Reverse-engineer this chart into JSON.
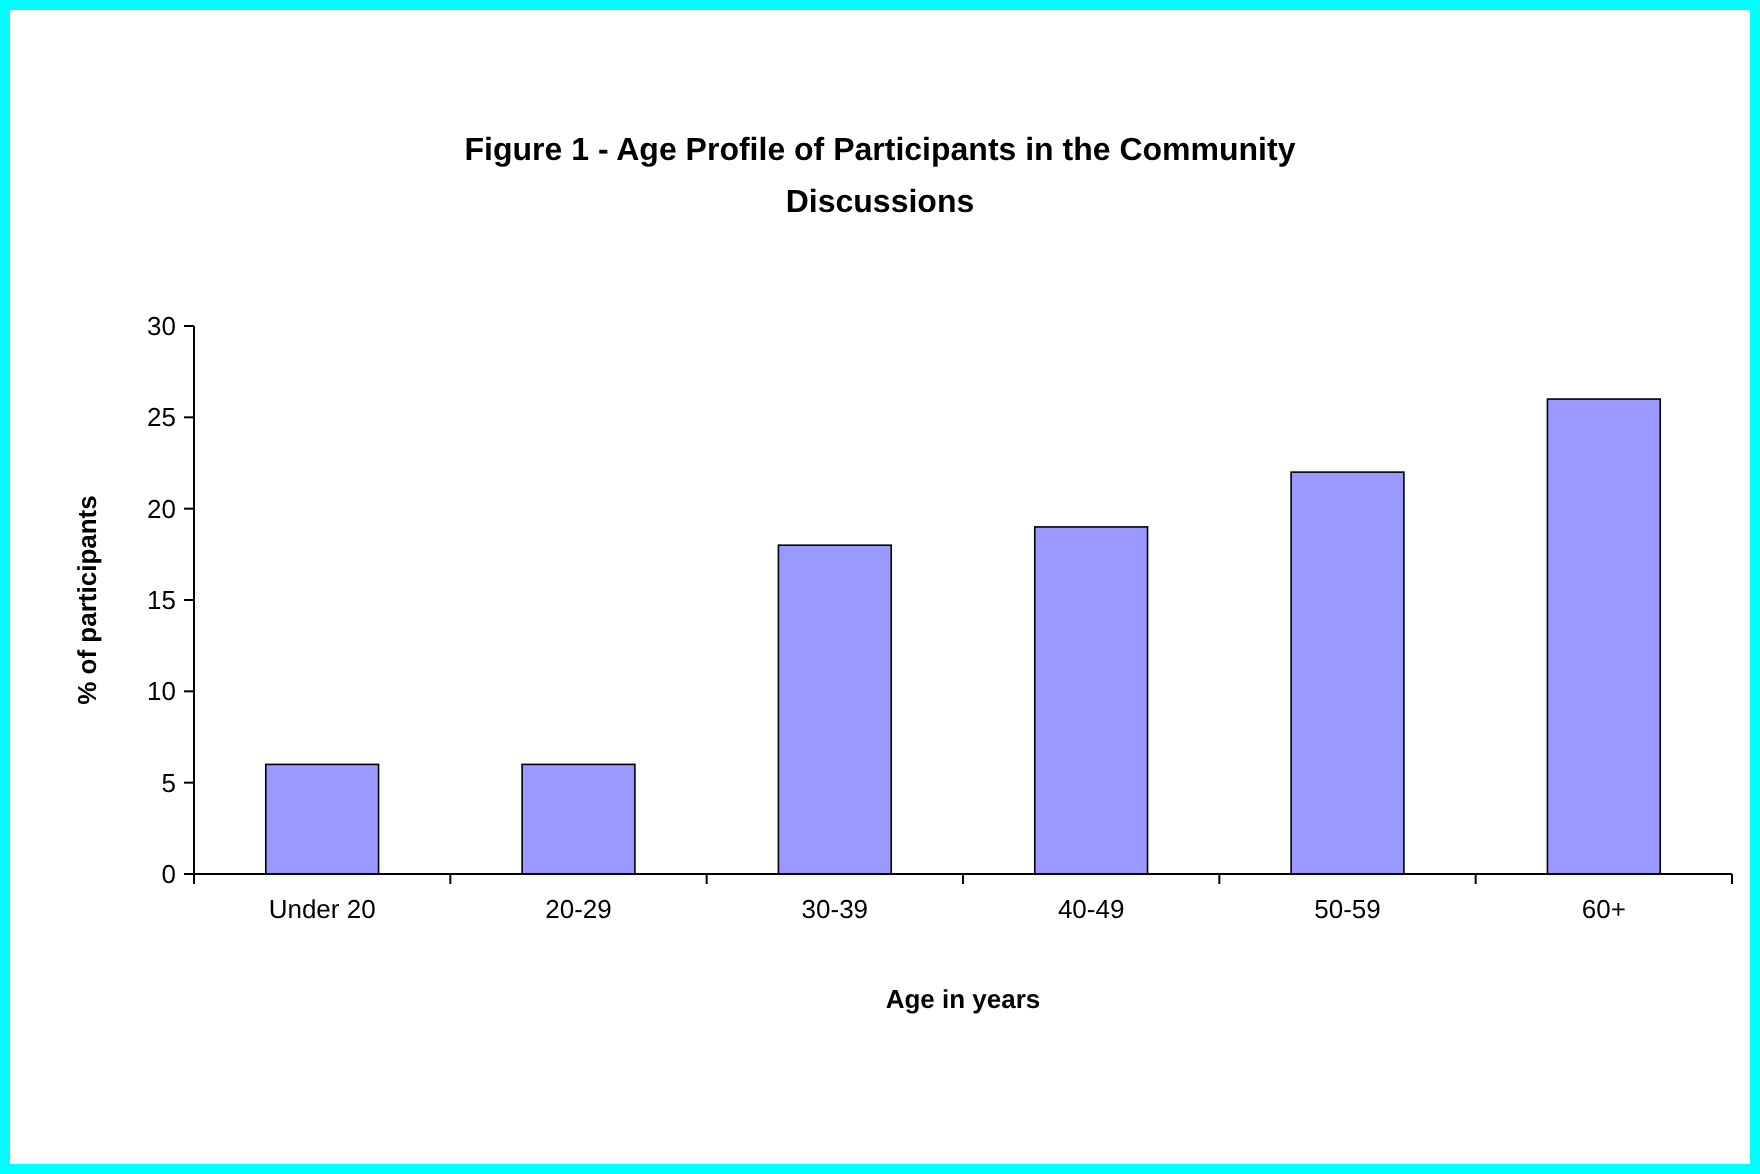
{
  "chart_data": {
    "type": "bar",
    "title": "Figure 1 - Age Profile of Participants in the Community Discussions",
    "xlabel": "Age in years",
    "ylabel": "% of participants",
    "categories": [
      "Under 20",
      "20-29",
      "30-39",
      "40-49",
      "50-59",
      "60+"
    ],
    "values": [
      6,
      6,
      18,
      19,
      22,
      26
    ],
    "color": "#9999ff",
    "ylim": [
      0,
      30
    ],
    "yticks": [
      0,
      5,
      10,
      15,
      20,
      25,
      30
    ],
    "grid": false
  }
}
